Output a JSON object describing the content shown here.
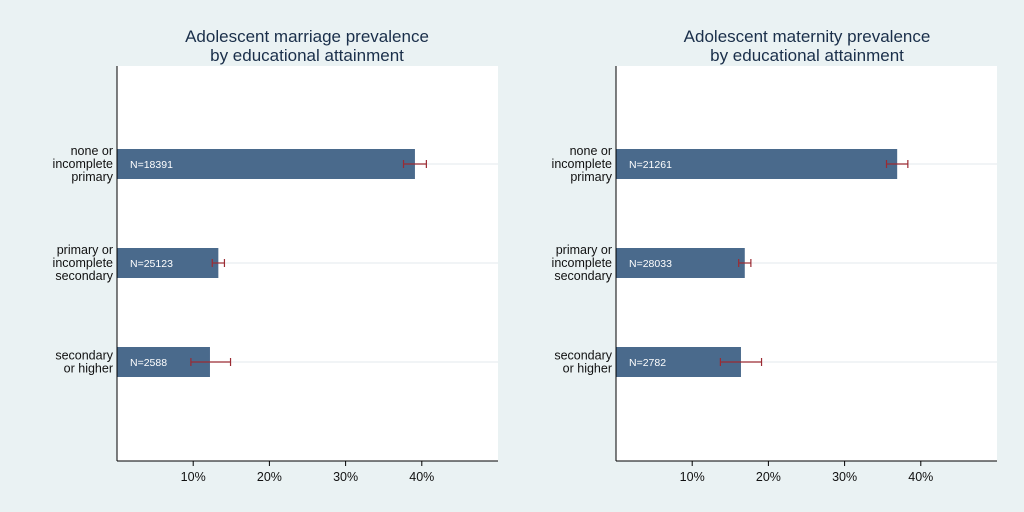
{
  "chart_data": [
    {
      "type": "bar",
      "orientation": "horizontal",
      "title": [
        "Adolescent marriage prevalence",
        "by educational attainment"
      ],
      "categories": [
        [
          "none or",
          "incomplete",
          "primary"
        ],
        [
          "primary or",
          "incomplete",
          "secondary"
        ],
        [
          "secondary",
          "or higher"
        ]
      ],
      "values": [
        39.1,
        13.3,
        12.2
      ],
      "ci_low": [
        37.6,
        12.5,
        9.7
      ],
      "ci_high": [
        40.6,
        14.1,
        14.9
      ],
      "n_labels": [
        "N=18391",
        "N=25123",
        "N=2588"
      ],
      "x_ticks": [
        10,
        20,
        30,
        40
      ],
      "x_tick_labels": [
        "10%",
        "20%",
        "30%",
        "40%"
      ],
      "xlim": [
        0,
        50
      ],
      "grid": "horizontal"
    },
    {
      "type": "bar",
      "orientation": "horizontal",
      "title": [
        "Adolescent maternity prevalence",
        "by educational attainment"
      ],
      "categories": [
        [
          "none or",
          "incomplete",
          "primary"
        ],
        [
          "primary or",
          "incomplete",
          "secondary"
        ],
        [
          "secondary",
          "or higher"
        ]
      ],
      "values": [
        36.9,
        16.9,
        16.4
      ],
      "ci_low": [
        35.5,
        16.1,
        13.7
      ],
      "ci_high": [
        38.3,
        17.7,
        19.1
      ],
      "n_labels": [
        "N=21261",
        "N=28033",
        "N=2782"
      ],
      "x_ticks": [
        10,
        20,
        30,
        40
      ],
      "x_tick_labels": [
        "10%",
        "20%",
        "30%",
        "40%"
      ],
      "xlim": [
        0,
        50
      ],
      "grid": "horizontal"
    }
  ],
  "colors": {
    "background": "#eaf2f3",
    "plot_area": "#ffffff",
    "bar": "#4a6a8c",
    "error_bar": "#9b2b33",
    "title": "#1a2f4a",
    "text": "#111111",
    "bar_label": "#ffffff",
    "grid": "#e3e9ee"
  }
}
